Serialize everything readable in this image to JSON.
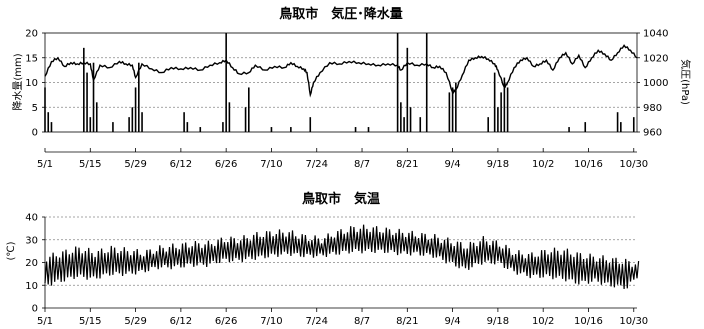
{
  "chart_data": [
    {
      "type": "line",
      "title": "鳥取市　気圧･降水量",
      "ylabel_left": "降水量(mm)",
      "ylabel_right": "気圧(hPa)",
      "x_ticks": [
        "5/1",
        "5/15",
        "5/29",
        "6/12",
        "6/26",
        "7/10",
        "7/24",
        "8/7",
        "8/21",
        "9/4",
        "9/18",
        "10/2",
        "10/16",
        "10/30"
      ],
      "xlim": [
        "5/1",
        "10/31"
      ],
      "ylim_left": [
        0,
        20
      ],
      "yticks_left": [
        "0",
        "5",
        "10",
        "15",
        "20"
      ],
      "ylim_right": [
        960,
        1040
      ],
      "yticks_right": [
        "960",
        "980",
        "1000",
        "1020",
        "1040"
      ],
      "grid": "horizontal dotted",
      "series": [
        {
          "axis": "right",
          "kind": "line",
          "color": "#000000",
          "points": [
            [
              "5/1",
              1005
            ],
            [
              "5/3",
              1017
            ],
            [
              "5/5",
              1020
            ],
            [
              "5/7",
              1013
            ],
            [
              "5/9",
              1016
            ],
            [
              "5/11",
              1015
            ],
            [
              "5/13",
              1016
            ],
            [
              "5/15",
              1015
            ],
            [
              "5/16",
              1002
            ],
            [
              "5/18",
              1014
            ],
            [
              "5/21",
              1012
            ],
            [
              "5/24",
              1017
            ],
            [
              "5/26",
              1015
            ],
            [
              "5/28",
              1014
            ],
            [
              "5/29",
              1004
            ],
            [
              "5/31",
              1015
            ],
            [
              "6/3",
              1011
            ],
            [
              "6/6",
              1008
            ],
            [
              "6/9",
              1012
            ],
            [
              "6/12",
              1011
            ],
            [
              "6/15",
              1012
            ],
            [
              "6/18",
              1010
            ],
            [
              "6/21",
              1014
            ],
            [
              "6/24",
              1016
            ],
            [
              "6/26",
              1018
            ],
            [
              "6/28",
              1012
            ],
            [
              "6/30",
              1007
            ],
            [
              "7/3",
              1008
            ],
            [
              "7/5",
              1014
            ],
            [
              "7/8",
              1010
            ],
            [
              "7/11",
              1013
            ],
            [
              "7/14",
              1012
            ],
            [
              "7/16",
              1016
            ],
            [
              "7/18",
              1013
            ],
            [
              "7/20",
              1011
            ],
            [
              "7/21",
              1008
            ],
            [
              "7/22",
              990
            ],
            [
              "7/23",
              1000
            ],
            [
              "7/25",
              1008
            ],
            [
              "7/28",
              1016
            ],
            [
              "7/31",
              1015
            ],
            [
              "8/3",
              1017
            ],
            [
              "8/6",
              1016
            ],
            [
              "8/9",
              1015
            ],
            [
              "8/12",
              1014
            ],
            [
              "8/15",
              1015
            ],
            [
              "8/18",
              1014
            ],
            [
              "8/19",
              1010
            ],
            [
              "8/21",
              1016
            ],
            [
              "8/24",
              1014
            ],
            [
              "8/27",
              1015
            ],
            [
              "8/29",
              1012
            ],
            [
              "8/31",
              1013
            ],
            [
              "9/2",
              1008
            ],
            [
              "9/4",
              992
            ],
            [
              "9/5",
              994
            ],
            [
              "9/7",
              1006
            ],
            [
              "9/9",
              1018
            ],
            [
              "9/11",
              1020
            ],
            [
              "9/13",
              1021
            ],
            [
              "9/15",
              1019
            ],
            [
              "9/17",
              1015
            ],
            [
              "9/18",
              1010
            ],
            [
              "9/20",
              996
            ],
            [
              "9/21",
              1000
            ],
            [
              "9/23",
              1012
            ],
            [
              "9/25",
              1018
            ],
            [
              "9/27",
              1020
            ],
            [
              "9/29",
              1013
            ],
            [
              "10/1",
              1015
            ],
            [
              "10/3",
              1018
            ],
            [
              "10/5",
              1010
            ],
            [
              "10/7",
              1020
            ],
            [
              "10/9",
              1024
            ],
            [
              "10/11",
              1015
            ],
            [
              "10/13",
              1022
            ],
            [
              "10/15",
              1012
            ],
            [
              "10/17",
              1020
            ],
            [
              "10/19",
              1026
            ],
            [
              "10/21",
              1023
            ],
            [
              "10/23",
              1018
            ],
            [
              "10/25",
              1024
            ],
            [
              "10/27",
              1030
            ],
            [
              "10/29",
              1026
            ],
            [
              "10/31",
              1020
            ]
          ]
        },
        {
          "axis": "left",
          "kind": "bar",
          "color": "#000000",
          "points": [
            [
              "5/1",
              9
            ],
            [
              "5/2",
              4
            ],
            [
              "5/3",
              2
            ],
            [
              "5/13",
              17
            ],
            [
              "5/14",
              12
            ],
            [
              "5/15",
              3
            ],
            [
              "5/16",
              14
            ],
            [
              "5/17",
              6
            ],
            [
              "5/22",
              2
            ],
            [
              "5/27",
              3
            ],
            [
              "5/28",
              5
            ],
            [
              "5/29",
              9
            ],
            [
              "5/30",
              14
            ],
            [
              "5/31",
              4
            ],
            [
              "6/13",
              4
            ],
            [
              "6/14",
              2
            ],
            [
              "6/18",
              1
            ],
            [
              "6/25",
              2
            ],
            [
              "6/26",
              20
            ],
            [
              "6/27",
              6
            ],
            [
              "7/2",
              5
            ],
            [
              "7/3",
              9
            ],
            [
              "7/10",
              1
            ],
            [
              "7/16",
              1
            ],
            [
              "7/22",
              3
            ],
            [
              "8/5",
              1
            ],
            [
              "8/9",
              1
            ],
            [
              "8/18",
              20
            ],
            [
              "8/19",
              6
            ],
            [
              "8/20",
              3
            ],
            [
              "8/21",
              17
            ],
            [
              "8/22",
              5
            ],
            [
              "8/25",
              3
            ],
            [
              "8/27",
              20
            ],
            [
              "9/3",
              8
            ],
            [
              "9/4",
              9
            ],
            [
              "9/5",
              10
            ],
            [
              "9/15",
              3
            ],
            [
              "9/17",
              12
            ],
            [
              "9/18",
              5
            ],
            [
              "9/19",
              8
            ],
            [
              "9/20",
              11
            ],
            [
              "9/21",
              9
            ],
            [
              "10/10",
              1
            ],
            [
              "10/15",
              2
            ],
            [
              "10/25",
              4
            ],
            [
              "10/26",
              2
            ],
            [
              "10/30",
              3
            ]
          ]
        }
      ]
    },
    {
      "type": "line",
      "title": "鳥取市　気温",
      "ylabel": "(℃)",
      "x_ticks": [
        "5/1",
        "5/15",
        "5/29",
        "6/12",
        "6/26",
        "7/10",
        "7/24",
        "8/7",
        "8/21",
        "9/4",
        "9/18",
        "10/2",
        "10/16",
        "10/30"
      ],
      "xlim": [
        "5/1",
        "10/31"
      ],
      "ylim": [
        0,
        40
      ],
      "yticks": [
        "0",
        "10",
        "20",
        "30",
        "40"
      ],
      "grid": "horizontal dotted",
      "series": [
        {
          "kind": "line",
          "color": "#000000",
          "daily_max_min": [
            [
              "5/1",
              22,
              10
            ],
            [
              "5/6",
              24,
              12
            ],
            [
              "5/11",
              26,
              14
            ],
            [
              "5/16",
              24,
              13
            ],
            [
              "5/21",
              26,
              15
            ],
            [
              "5/26",
              25,
              15
            ],
            [
              "5/31",
              24,
              16
            ],
            [
              "6/5",
              26,
              18
            ],
            [
              "6/10",
              27,
              18
            ],
            [
              "6/15",
              28,
              19
            ],
            [
              "6/20",
              28,
              19
            ],
            [
              "6/25",
              30,
              21
            ],
            [
              "6/30",
              30,
              21
            ],
            [
              "7/5",
              32,
              22
            ],
            [
              "7/10",
              33,
              23
            ],
            [
              "7/15",
              33,
              24
            ],
            [
              "7/20",
              31,
              23
            ],
            [
              "7/25",
              30,
              23
            ],
            [
              "7/30",
              33,
              24
            ],
            [
              "8/4",
              35,
              25
            ],
            [
              "8/9",
              35,
              25
            ],
            [
              "8/14",
              34,
              25
            ],
            [
              "8/19",
              33,
              24
            ],
            [
              "8/24",
              32,
              24
            ],
            [
              "8/29",
              31,
              23
            ],
            [
              "9/3",
              29,
              20
            ],
            [
              "9/8",
              27,
              17
            ],
            [
              "9/13",
              30,
              20
            ],
            [
              "9/18",
              28,
              20
            ],
            [
              "9/23",
              24,
              16
            ],
            [
              "9/28",
              23,
              14
            ],
            [
              "10/3",
              25,
              14
            ],
            [
              "10/8",
              25,
              13
            ],
            [
              "10/13",
              23,
              11
            ],
            [
              "10/18",
              22,
              12
            ],
            [
              "10/23",
              21,
              10
            ],
            [
              "10/28",
              20,
              9
            ],
            [
              "10/31",
              19,
              14
            ]
          ]
        }
      ]
    }
  ]
}
